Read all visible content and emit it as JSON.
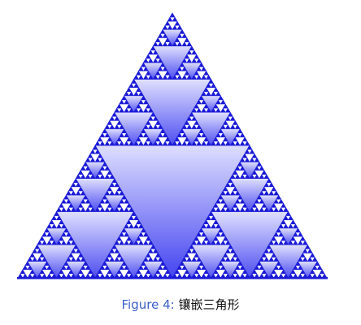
{
  "figure": {
    "caption": {
      "label": "Figure 4:",
      "text": "镶嵌三角形"
    },
    "fractal": {
      "kind": "sierpinski-triangle",
      "depth": 6,
      "colors": {
        "outline": "#1a1ad6",
        "fill_light": "#dcdcff",
        "fill_dark": "#3a3af0",
        "background": "#ffffff"
      }
    }
  }
}
